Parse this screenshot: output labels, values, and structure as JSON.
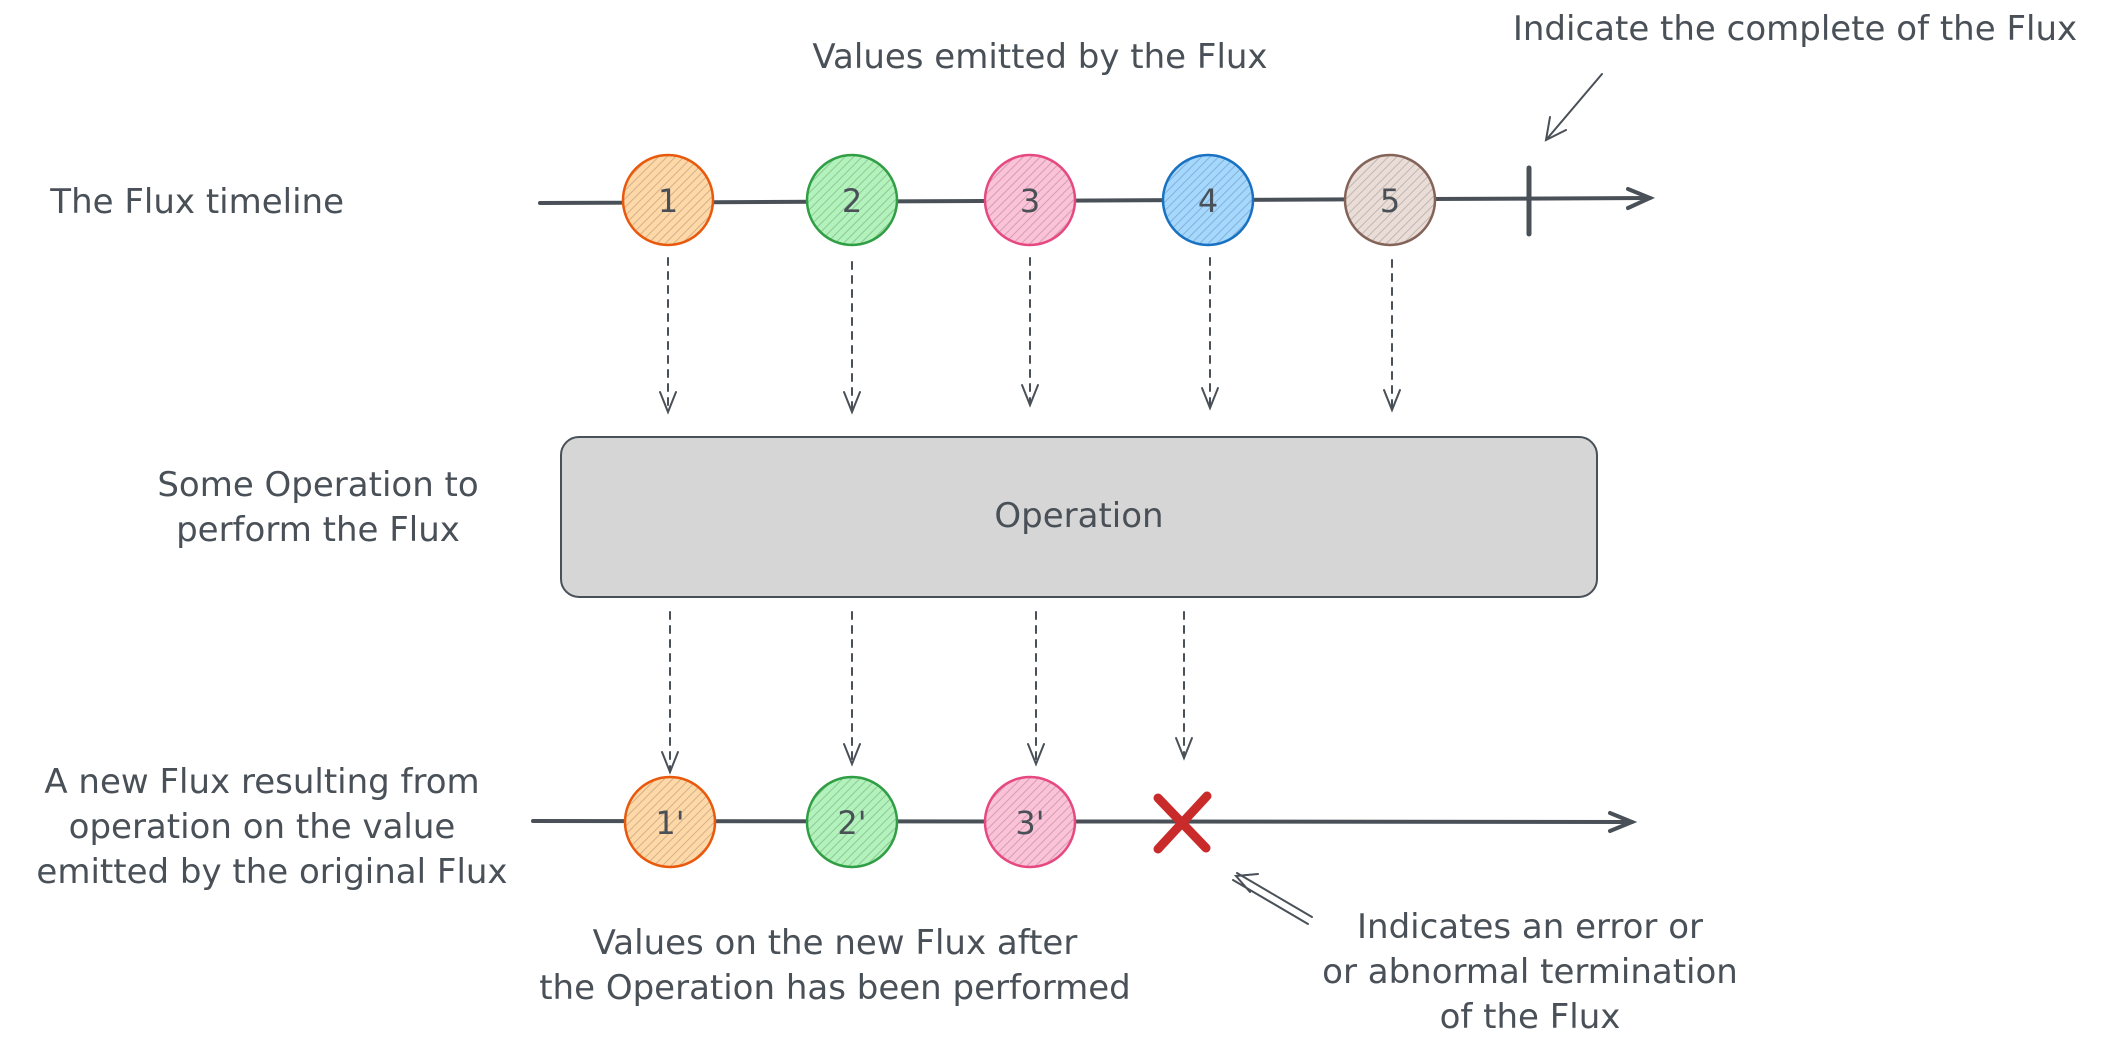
{
  "labels": {
    "values_emitted": "Values emitted by the Flux",
    "complete": "Indicate the complete of the Flux",
    "flux_timeline": "The Flux timeline",
    "operation_desc": [
      "Some Operation to",
      "perform the Flux"
    ],
    "operation_box": "Operation",
    "new_flux": [
      "A new Flux resulting from",
      "operation on the value",
      "emitted by the original Flux"
    ],
    "new_values": [
      "Values on the new Flux after",
      "the Operation has been performed"
    ],
    "error": [
      "Indicates an error or",
      "or abnormal termination",
      "of the Flux"
    ]
  },
  "source_values": [
    {
      "label": "1",
      "color": "#e8590c",
      "fill": "#ffd8a8"
    },
    {
      "label": "2",
      "color": "#2f9e44",
      "fill": "#b2f2bb"
    },
    {
      "label": "3",
      "color": "#e64980",
      "fill": "#fcc2d7"
    },
    {
      "label": "4",
      "color": "#1971c2",
      "fill": "#a5d8ff"
    },
    {
      "label": "5",
      "color": "#846358",
      "fill": "#eaddd7"
    }
  ],
  "result_values": [
    {
      "label": "1'",
      "color": "#e8590c",
      "fill": "#ffd8a8"
    },
    {
      "label": "2'",
      "color": "#2f9e44",
      "fill": "#b2f2bb"
    },
    {
      "label": "3'",
      "color": "#e64980",
      "fill": "#fcc2d7"
    }
  ],
  "colors": {
    "ink": "#495057",
    "operation_fill": "#d6d6d6",
    "error": "#c92a2a"
  }
}
